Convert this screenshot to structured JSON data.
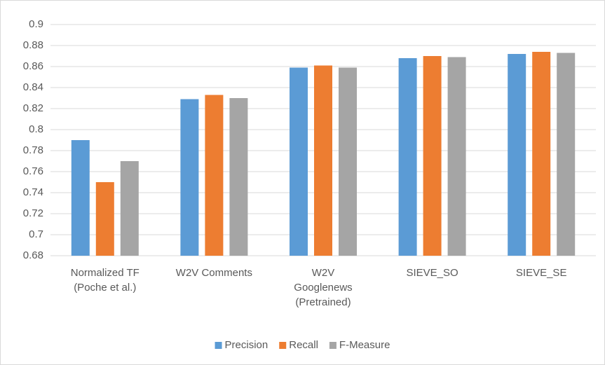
{
  "chart_data": {
    "type": "bar",
    "categories": [
      "Normalized TF\n(Poche et al.)",
      "W2V Comments",
      "W2V\nGooglenews\n(Pretrained)",
      "SIEVE_SO",
      "SIEVE_SE"
    ],
    "series": [
      {
        "name": "Precision",
        "color": "#5b9bd5",
        "values": [
          0.79,
          0.829,
          0.859,
          0.868,
          0.872
        ]
      },
      {
        "name": "Recall",
        "color": "#ed7d31",
        "values": [
          0.75,
          0.833,
          0.861,
          0.87,
          0.874
        ]
      },
      {
        "name": "F-Measure",
        "color": "#a5a5a5",
        "values": [
          0.77,
          0.83,
          0.859,
          0.869,
          0.873
        ]
      }
    ],
    "ylim": [
      0.68,
      0.9
    ],
    "yticks": [
      0.68,
      0.7,
      0.72,
      0.74,
      0.76,
      0.78,
      0.8,
      0.82,
      0.84,
      0.86,
      0.88,
      0.9
    ],
    "grid": true,
    "legend": "bottom"
  }
}
